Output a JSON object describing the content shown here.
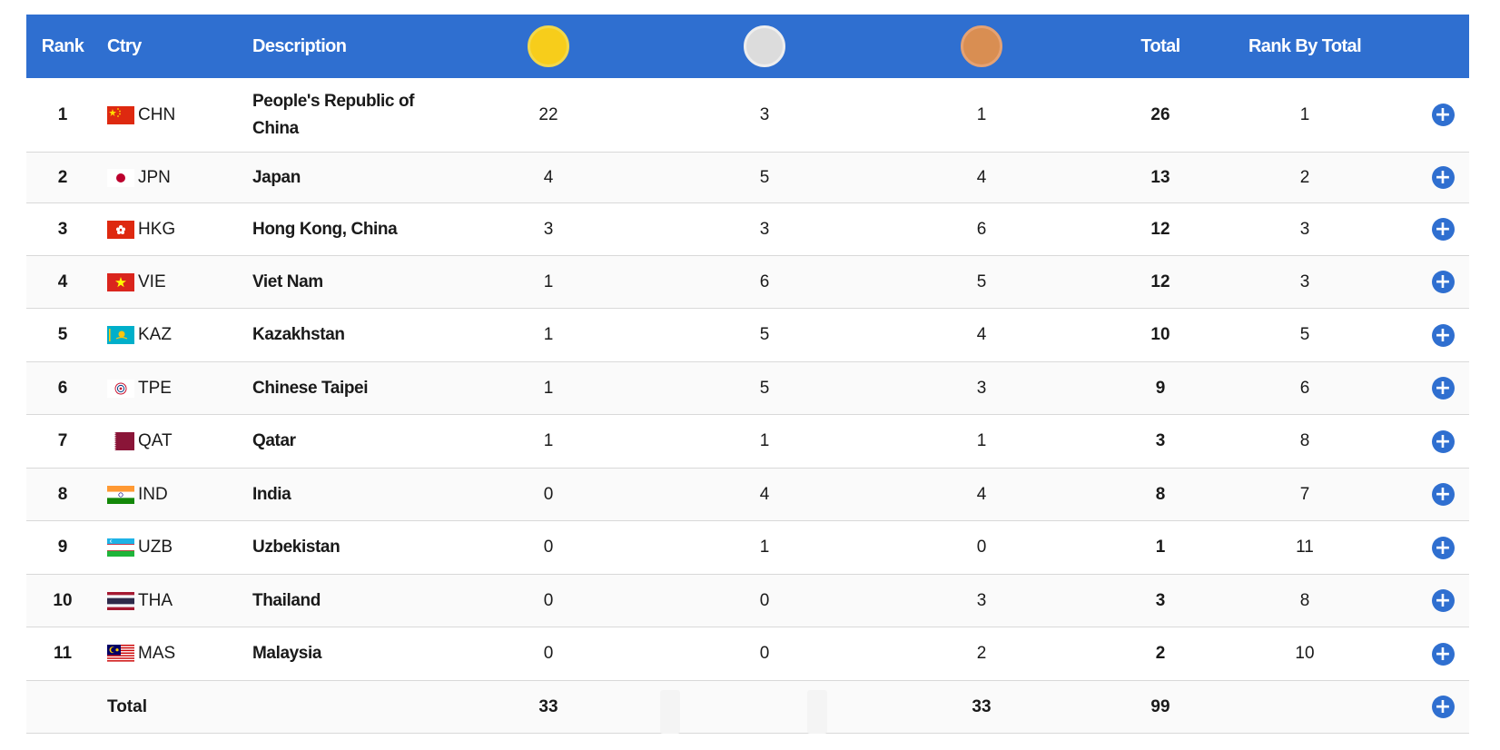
{
  "header": {
    "rank": "Rank",
    "ctry": "Ctry",
    "description": "Description",
    "total": "Total",
    "rank_by_total": "Rank By Total",
    "medal_icons": [
      "gold-medal-icon",
      "silver-medal-icon",
      "bronze-medal-icon"
    ]
  },
  "colors": {
    "header_bg": "#2f6fd0",
    "gold": "#f7cd1b",
    "silver": "#dcdcdc",
    "bronze": "#d98e52",
    "button": "#2f6fd0"
  },
  "rows": [
    {
      "rank": "1",
      "code": "CHN",
      "desc": "People's Republic of China",
      "gold": "22",
      "silver": "3",
      "bronze": "1",
      "total": "26",
      "rbt": "1"
    },
    {
      "rank": "2",
      "code": "JPN",
      "desc": "Japan",
      "gold": "4",
      "silver": "5",
      "bronze": "4",
      "total": "13",
      "rbt": "2"
    },
    {
      "rank": "3",
      "code": "HKG",
      "desc": "Hong Kong, China",
      "gold": "3",
      "silver": "3",
      "bronze": "6",
      "total": "12",
      "rbt": "3"
    },
    {
      "rank": "4",
      "code": "VIE",
      "desc": "Viet Nam",
      "gold": "1",
      "silver": "6",
      "bronze": "5",
      "total": "12",
      "rbt": "3"
    },
    {
      "rank": "5",
      "code": "KAZ",
      "desc": "Kazakhstan",
      "gold": "1",
      "silver": "5",
      "bronze": "4",
      "total": "10",
      "rbt": "5"
    },
    {
      "rank": "6",
      "code": "TPE",
      "desc": "Chinese Taipei",
      "gold": "1",
      "silver": "5",
      "bronze": "3",
      "total": "9",
      "rbt": "6"
    },
    {
      "rank": "7",
      "code": "QAT",
      "desc": "Qatar",
      "gold": "1",
      "silver": "1",
      "bronze": "1",
      "total": "3",
      "rbt": "8"
    },
    {
      "rank": "8",
      "code": "IND",
      "desc": "India",
      "gold": "0",
      "silver": "4",
      "bronze": "4",
      "total": "8",
      "rbt": "7"
    },
    {
      "rank": "9",
      "code": "UZB",
      "desc": "Uzbekistan",
      "gold": "0",
      "silver": "1",
      "bronze": "0",
      "total": "1",
      "rbt": "11"
    },
    {
      "rank": "10",
      "code": "THA",
      "desc": "Thailand",
      "gold": "0",
      "silver": "0",
      "bronze": "3",
      "total": "3",
      "rbt": "8"
    },
    {
      "rank": "11",
      "code": "MAS",
      "desc": "Malaysia",
      "gold": "0",
      "silver": "0",
      "bronze": "2",
      "total": "2",
      "rbt": "10"
    }
  ],
  "totals": {
    "label": "Total",
    "gold": "33",
    "bronze": "33",
    "total": "99"
  },
  "expand_button_label": "+"
}
